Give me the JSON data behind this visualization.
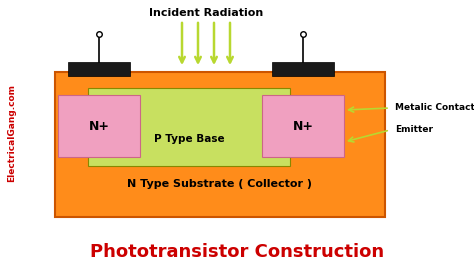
{
  "bg_color": "#ffffff",
  "title": "Phototransistor Construction",
  "title_color": "#cc0000",
  "title_fontsize": 13,
  "watermark": "ElectricalGang.com",
  "watermark_color": "#cc0000",
  "substrate_color": "#ff8c1a",
  "substrate_label": "N Type Substrate ( Collector )",
  "pbase_color": "#c8e060",
  "pbase_label": "P Type Base",
  "n_color": "#f0a0c0",
  "n_label": "N+",
  "metal_color": "#1a1a1a",
  "arrow_color": "#b8d830",
  "incident_label": "Incident Radiation",
  "label_metalic": "Metalic Contact",
  "label_emitter": "Emitter"
}
